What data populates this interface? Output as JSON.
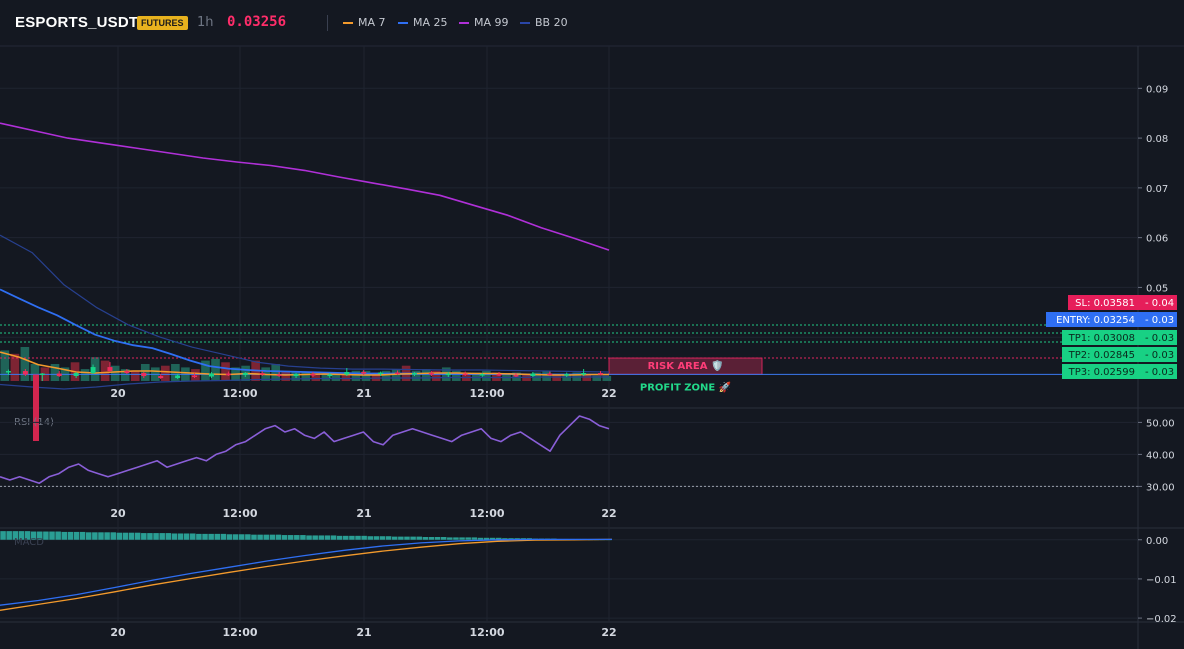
{
  "header": {
    "symbol": "ESPORTS_USDT",
    "badge": "FUTURES",
    "timeframe": "1h",
    "price": "0.03256",
    "legend": [
      {
        "label": "MA 7",
        "color": "#f39a2c"
      },
      {
        "label": "MA 25",
        "color": "#2f6ff3"
      },
      {
        "label": "MA 99",
        "color": "#b030d8"
      },
      {
        "label": "BB 20",
        "color": "#2a46a8"
      }
    ]
  },
  "chart_data": [
    {
      "type": "candlestick",
      "panel": "price",
      "x_ticks": [
        "20",
        "12:00",
        "21",
        "12:00",
        "22"
      ],
      "y_ticks": [
        "0.09",
        "0.08",
        "0.07",
        "0.06",
        "0.05",
        "0.04"
      ],
      "ylim": [
        0.0312,
        0.0985
      ],
      "levels": {
        "sl": {
          "label": "SL: 0.03581",
          "value": 0.03581,
          "axis": "0.04"
        },
        "entry": {
          "label": "ENTRY: 0.03254",
          "value": 0.03254,
          "axis": "0.03"
        },
        "tp": [
          {
            "label": "TP1: 0.03008",
            "value": 0.03008,
            "axis": "0.03"
          },
          {
            "label": "TP2: 0.02845",
            "value": 0.02845,
            "axis": "0.03"
          },
          {
            "label": "TP3: 0.02599",
            "value": 0.02599,
            "axis": "0.03"
          }
        ]
      },
      "zones": {
        "risk": "RISK AREA 🛡️",
        "profit": "PROFIT ZONE 🚀"
      },
      "ma7": [
        0.037,
        0.036,
        0.0345,
        0.0338,
        0.033,
        0.0328,
        0.033,
        0.0332,
        0.0332,
        0.033,
        0.0328,
        0.0326,
        0.0325,
        0.0327,
        0.0325,
        0.0324,
        0.0325,
        0.0326,
        0.0325,
        0.0324,
        0.0324,
        0.0326,
        0.0327,
        0.0328,
        0.0328,
        0.0327,
        0.0327,
        0.0326,
        0.0325,
        0.0324,
        0.0324,
        0.0325,
        0.0325
      ],
      "ma25": [
        0.0496,
        0.0478,
        0.046,
        0.0444,
        0.0424,
        0.0405,
        0.0393,
        0.0384,
        0.0378,
        0.0366,
        0.0353,
        0.0342,
        0.0337,
        0.0334,
        0.0332,
        0.0331,
        0.033,
        0.0329,
        0.0328,
        0.0327,
        0.0327,
        0.0327,
        0.0327,
        0.0327,
        0.0326,
        0.0326,
        0.0326,
        0.0326,
        0.0325,
        0.0325,
        0.0325,
        0.0325,
        0.0325
      ],
      "ma99": [
        0.083,
        0.0815,
        0.08,
        0.079,
        0.078,
        0.077,
        0.076,
        0.0752,
        0.0745,
        0.0735,
        0.0722,
        0.071,
        0.0698,
        0.0685,
        0.0665,
        0.0645,
        0.062,
        0.0598,
        0.0575
      ],
      "bb_upper": [
        0.0605,
        0.057,
        0.0505,
        0.046,
        0.0425,
        0.04,
        0.038,
        0.0365,
        0.035,
        0.0342,
        0.0338,
        0.0336,
        0.0336,
        0.0335,
        0.0334,
        0.0334,
        0.0333,
        0.0332,
        0.0331,
        0.033
      ],
      "bb_lower": [
        0.0305,
        0.03,
        0.0296,
        0.03,
        0.0306,
        0.031,
        0.0312,
        0.0313,
        0.0315,
        0.0316,
        0.0317,
        0.0317,
        0.0318,
        0.0318,
        0.0319,
        0.0319,
        0.0319,
        0.032,
        0.032,
        0.032
      ],
      "candles": [
        [
          0.033,
          0.0335,
          0.0324,
          0.0332
        ],
        [
          0.0332,
          0.0336,
          0.0322,
          0.0325
        ],
        [
          0.0325,
          0.0328,
          0.0312,
          0.0327
        ],
        [
          0.0327,
          0.0332,
          0.032,
          0.0322
        ],
        [
          0.0322,
          0.033,
          0.0318,
          0.0328
        ],
        [
          0.0328,
          0.0345,
          0.0326,
          0.034
        ],
        [
          0.034,
          0.035,
          0.033,
          0.0332
        ],
        [
          0.0332,
          0.0336,
          0.0326,
          0.0328
        ],
        [
          0.0328,
          0.033,
          0.0318,
          0.0322
        ],
        [
          0.0322,
          0.0326,
          0.0316,
          0.0318
        ],
        [
          0.0318,
          0.0326,
          0.0316,
          0.0323
        ],
        [
          0.0323,
          0.0328,
          0.0318,
          0.0321
        ],
        [
          0.0321,
          0.033,
          0.0318,
          0.0327
        ],
        [
          0.0327,
          0.0331,
          0.0322,
          0.0324
        ],
        [
          0.0324,
          0.033,
          0.032,
          0.0328
        ],
        [
          0.0328,
          0.0332,
          0.0322,
          0.0325
        ],
        [
          0.0325,
          0.033,
          0.032,
          0.0322
        ],
        [
          0.0322,
          0.0328,
          0.0318,
          0.0326
        ],
        [
          0.0326,
          0.033,
          0.032,
          0.0323
        ],
        [
          0.0323,
          0.0328,
          0.0318,
          0.0325
        ],
        [
          0.0325,
          0.0338,
          0.0322,
          0.033
        ],
        [
          0.033,
          0.0334,
          0.0324,
          0.0327
        ],
        [
          0.0327,
          0.0331,
          0.0322,
          0.0329
        ],
        [
          0.0329,
          0.0333,
          0.0324,
          0.0326
        ],
        [
          0.0326,
          0.033,
          0.0322,
          0.0328
        ],
        [
          0.0328,
          0.0332,
          0.0322,
          0.0325
        ],
        [
          0.0325,
          0.033,
          0.032,
          0.0327
        ],
        [
          0.0327,
          0.0331,
          0.0322,
          0.0324
        ],
        [
          0.0324,
          0.0328,
          0.032,
          0.0326
        ],
        [
          0.0326,
          0.033,
          0.0322,
          0.0324
        ],
        [
          0.0324,
          0.0328,
          0.032,
          0.0322
        ],
        [
          0.0322,
          0.033,
          0.032,
          0.0327
        ],
        [
          0.0327,
          0.0331,
          0.0322,
          0.0325
        ],
        [
          0.0325,
          0.0329,
          0.032,
          0.0326
        ],
        [
          0.0326,
          0.0336,
          0.0322,
          0.0328
        ],
        [
          0.0328,
          0.0332,
          0.0323,
          0.0326
        ]
      ],
      "volume": [
        0.9,
        0.8,
        1.0,
        0.5,
        0.4,
        0.5,
        0.4,
        0.55,
        0.35,
        0.7,
        0.6,
        0.45,
        0.35,
        0.3,
        0.5,
        0.4,
        0.45,
        0.5,
        0.4,
        0.35,
        0.6,
        0.65,
        0.55,
        0.4,
        0.45,
        0.6,
        0.4,
        0.5,
        0.3,
        0.25,
        0.25,
        0.25,
        0.2,
        0.2,
        0.2,
        0.3,
        0.3,
        0.25,
        0.3,
        0.35,
        0.45,
        0.3,
        0.35,
        0.3,
        0.4,
        0.3,
        0.25,
        0.25,
        0.3,
        0.25,
        0.2,
        0.25,
        0.2,
        0.25,
        0.3,
        0.2,
        0.2,
        0.25,
        0.2,
        0.15,
        0.15
      ]
    },
    {
      "type": "line",
      "panel": "rsi",
      "title": "RSI (14)",
      "y_ticks": [
        "50.00",
        "40.00",
        "30.00"
      ],
      "ylim": [
        24.5,
        54.5
      ],
      "oversold_line": 30,
      "values": [
        33,
        32,
        33,
        32,
        31,
        33,
        34,
        36,
        37,
        35,
        34,
        33,
        34,
        35,
        36,
        37,
        38,
        36,
        37,
        38,
        39,
        38,
        40,
        41,
        43,
        44,
        46,
        48,
        49,
        47,
        48,
        46,
        45,
        47,
        44,
        45,
        46,
        47,
        44,
        43,
        46,
        47,
        48,
        47,
        46,
        45,
        44,
        46,
        47,
        48,
        45,
        44,
        46,
        47,
        45,
        43,
        41,
        46,
        49,
        52,
        51,
        49,
        48
      ]
    },
    {
      "type": "line",
      "panel": "macd",
      "title": "MACD",
      "y_ticks": [
        "0.00",
        "−0.01",
        "−0.02"
      ],
      "ylim": [
        -0.021,
        0.003
      ],
      "macd": [
        -0.0167,
        -0.0155,
        -0.014,
        -0.0122,
        -0.0103,
        -0.0086,
        -0.007,
        -0.0054,
        -0.004,
        -0.0027,
        -0.0016,
        -0.0008,
        -0.0003,
        0.0,
        0.0001,
        0.0001,
        0.0001
      ],
      "signal": [
        -0.018,
        -0.0165,
        -0.015,
        -0.0133,
        -0.0115,
        -0.0099,
        -0.0083,
        -0.0068,
        -0.0054,
        -0.0041,
        -0.0029,
        -0.0019,
        -0.001,
        -0.0004,
        -0.0001,
        0.0,
        0.0001
      ],
      "histogram": [
        0.0022,
        0.0021,
        0.002,
        0.0019,
        0.0018,
        0.0017,
        0.0016,
        0.0015,
        0.0014,
        0.0013,
        0.0012,
        0.0011,
        0.001,
        0.0009,
        0.0008,
        0.0007,
        0.0006,
        0.0005,
        0.0004,
        0.0003,
        0.0002,
        0.0001
      ]
    }
  ]
}
